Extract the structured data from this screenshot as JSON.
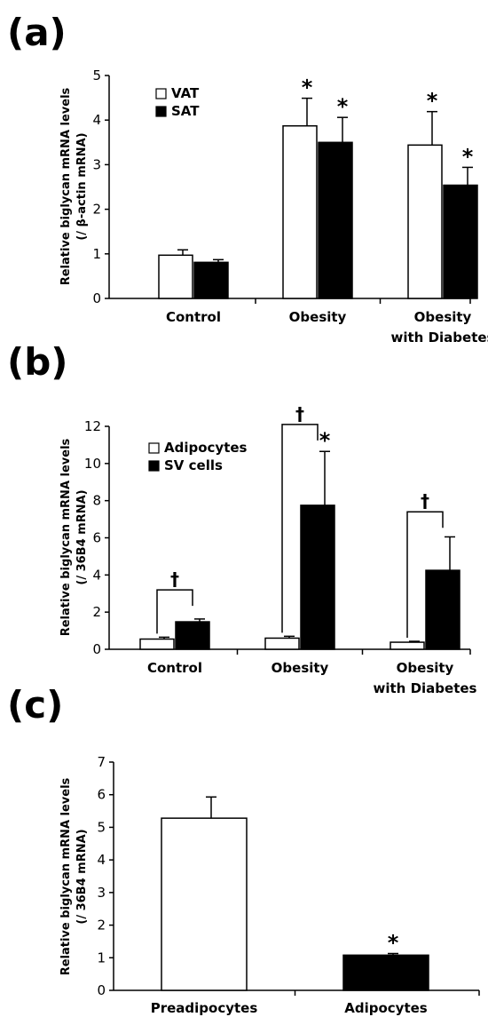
{
  "chart_data": [
    {
      "panel_label": "(a)",
      "type": "bar",
      "ylabel_lines": [
        "Relative biglycan mRNA levels",
        "(/ β-actin mRNA)"
      ],
      "ylim": [
        0,
        5
      ],
      "yticks": [
        0,
        1,
        2,
        3,
        4,
        5
      ],
      "categories": [
        [
          "Control"
        ],
        [
          "Obesity"
        ],
        [
          "Obesity",
          "with Diabetes"
        ]
      ],
      "series": [
        {
          "name": "VAT",
          "fill": "#ffffff",
          "values": [
            0.97,
            3.87,
            3.44
          ],
          "errors": [
            0.12,
            0.62,
            0.75
          ],
          "marks": [
            "",
            "*",
            "*"
          ]
        },
        {
          "name": "SAT",
          "fill": "#000000",
          "values": [
            0.81,
            3.5,
            2.54
          ],
          "errors": [
            0.06,
            0.56,
            0.4
          ],
          "marks": [
            "",
            "*",
            "*"
          ]
        }
      ],
      "brackets": [],
      "legend_position": "top-left",
      "grid": false
    },
    {
      "panel_label": "(b)",
      "type": "bar",
      "ylabel_lines": [
        "Relative biglycan mRNA levels",
        "(/ 36B4 mRNA)"
      ],
      "ylim": [
        0,
        12
      ],
      "yticks": [
        0,
        2,
        4,
        6,
        8,
        10,
        12
      ],
      "categories": [
        [
          "Control"
        ],
        [
          "Obesity"
        ],
        [
          "Obesity",
          "with Diabetes"
        ]
      ],
      "series": [
        {
          "name": "Adipocytes",
          "fill": "#ffffff",
          "values": [
            0.55,
            0.6,
            0.38
          ],
          "errors": [
            0.1,
            0.1,
            0.05
          ],
          "marks": [
            "",
            "",
            ""
          ]
        },
        {
          "name": "SV cells",
          "fill": "#000000",
          "values": [
            1.48,
            7.75,
            4.25
          ],
          "errors": [
            0.15,
            2.9,
            1.8
          ],
          "marks": [
            "",
            "*",
            ""
          ]
        }
      ],
      "brackets": [
        {
          "group": 0,
          "symbol": "†",
          "y": 3.2
        },
        {
          "group": 1,
          "symbol": "†",
          "y": 12.1
        },
        {
          "group": 2,
          "symbol": "†",
          "y": 7.4
        }
      ],
      "legend_position": "top-left",
      "grid": false
    },
    {
      "panel_label": "(c)",
      "type": "bar",
      "ylabel_lines": [
        "Relative biglycan mRNA levels",
        "(/ 36B4 mRNA)"
      ],
      "ylim": [
        0,
        7
      ],
      "yticks": [
        0,
        1,
        2,
        3,
        4,
        5,
        6,
        7
      ],
      "categories": [
        [
          "Preadipocytes"
        ],
        [
          "Adipocytes"
        ]
      ],
      "values": [
        5.28,
        1.08
      ],
      "errors": [
        0.65,
        0.05
      ],
      "fills": [
        "#ffffff",
        "#000000"
      ],
      "marks": [
        "",
        "*"
      ],
      "grid": false
    }
  ]
}
